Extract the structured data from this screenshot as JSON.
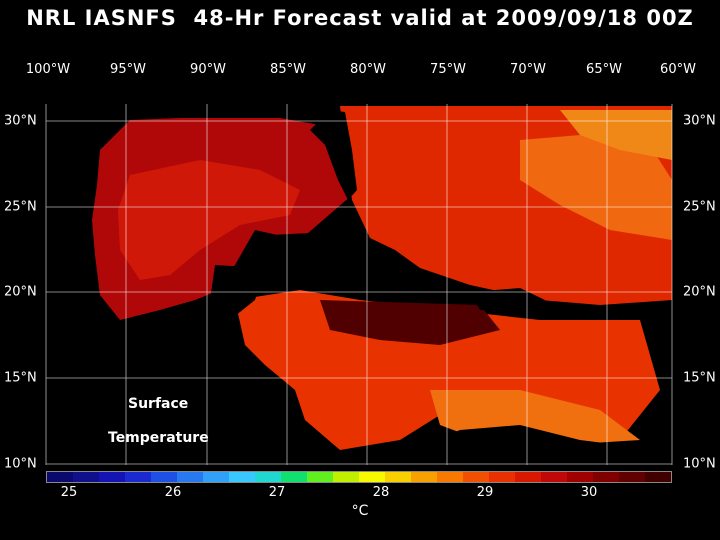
{
  "title": "NRL IASNFS  48-Hr Forecast valid at 2009/09/18 00Z",
  "lon_labels": [
    "100°W",
    "95°W",
    "90°W",
    "85°W",
    "80°W",
    "75°W",
    "70°W",
    "65°W",
    "60°W"
  ],
  "lat_labels": [
    "30°N",
    "25°N",
    "20°N",
    "15°N",
    "10°N"
  ],
  "map_label": {
    "line1": "Surface",
    "line2": "Temperature"
  },
  "colorbar": {
    "ticks": [
      "25",
      "26",
      "27",
      "28",
      "29",
      "30"
    ],
    "units": "°C",
    "colors": [
      "#0a0a6e",
      "#10108c",
      "#1414b4",
      "#1a2ad0",
      "#1e50e6",
      "#2878f0",
      "#30a0f8",
      "#38c8ff",
      "#20d8d0",
      "#10e070",
      "#60f020",
      "#c0f000",
      "#f8f800",
      "#f8d000",
      "#f8a000",
      "#f87800",
      "#f05000",
      "#e83000",
      "#d81800",
      "#c00808",
      "#a00000",
      "#800000",
      "#600000",
      "#400000"
    ]
  }
}
